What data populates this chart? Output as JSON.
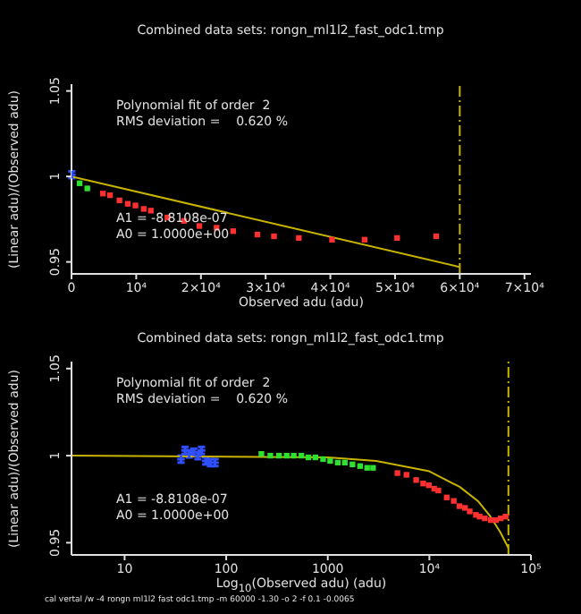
{
  "chart_data": [
    {
      "type": "scatter",
      "title": "Combined data sets: rongn_ml1l2_fast_odc1.tmp",
      "xlabel": "Observed adu (adu)",
      "ylabel": "(Linear adu)/(Observed adu)",
      "annotations": [
        "Polynomial fit of order  2",
        "RMS deviation =    0.620 %",
        "A1 = -8.8108e-07",
        "A0 = 1.0000e+00"
      ],
      "xlim": [
        0,
        71000
      ],
      "xticks": [
        0,
        {
          "value": 10000,
          "label": "10⁴"
        },
        {
          "value": 20000,
          "label": "2×10⁴"
        },
        {
          "value": 30000,
          "label": "3×10⁴"
        },
        {
          "value": 40000,
          "label": "4×10⁴"
        },
        {
          "value": 50000,
          "label": "5×10⁴"
        },
        {
          "value": 60000,
          "label": "6×10⁴"
        },
        {
          "value": 70000,
          "label": "7×10⁴"
        }
      ],
      "ylim": [
        0.943,
        1.054
      ],
      "yticks": [
        0.95,
        1,
        1.05
      ],
      "marker": "square",
      "series": [
        {
          "type": "line",
          "marker": "none",
          "line_style": "dashed",
          "color": "#c8b400",
          "x": [
            60000,
            60000
          ],
          "values": [
            0.943,
            1.054
          ]
        },
        {
          "color": "#3050ff",
          "marker": "cross",
          "x": [
            50
          ],
          "values": [
            1.001
          ],
          "errors": [
            0.002
          ]
        },
        {
          "color": "#30e030",
          "x": [
            1253,
            2440
          ],
          "values": [
            0.996,
            0.993
          ]
        },
        {
          "color": "#ff3030",
          "x": [
            4850,
            5950,
            7410,
            8690,
            9880,
            11160,
            12260,
            14820,
            17380,
            19760,
            22420,
            24980,
            28730,
            31290,
            35130,
            40260,
            45290,
            50320,
            56360
          ],
          "values": [
            0.99,
            0.989,
            0.986,
            0.984,
            0.983,
            0.981,
            0.98,
            0.976,
            0.974,
            0.971,
            0.97,
            0.968,
            0.966,
            0.965,
            0.964,
            0.963,
            0.963,
            0.964,
            0.965
          ]
        },
        {
          "type": "line",
          "marker": "none",
          "color": "#c8b400",
          "x": [
            0,
            60000
          ],
          "values": [
            1.0,
            0.947
          ]
        }
      ]
    },
    {
      "type": "scatter",
      "title": "Combined data sets: rongn_ml1l2_fast_odc1.tmp",
      "xlabel": "Log$_{10}$(Observed adu) (adu)",
      "ylabel": "(Linear adu)/(Observed adu)",
      "annotations": [
        "Polynomial fit of order  2",
        "RMS deviation =    0.620 %",
        "A1 = -8.8108e-07",
        "A0 = 1.0000e+00",
        "cal vertal /w -4 rongn ml1l2 fast odc1.tmp -m 60000 -1.30 -o 2 -f 0.1 -0.0065"
      ],
      "log": "x",
      "xlim": [
        3,
        100000
      ],
      "xticks": [
        10,
        100,
        1000,
        {
          "value": 10000,
          "label": "10⁴"
        },
        {
          "value": 100000,
          "label": "10⁵"
        }
      ],
      "ylim": [
        0.943,
        1.054
      ],
      "yticks": [
        0.95,
        1,
        1.05
      ],
      "marker": "square",
      "series": [
        {
          "type": "line",
          "marker": "none",
          "line_style": "dashed",
          "color": "#c8b400",
          "x": [
            60000,
            60000
          ],
          "values": [
            0.943,
            1.054
          ]
        },
        {
          "color": "#3050ff",
          "marker": "cross",
          "x": [
            35.9,
            39.4,
            43.2,
            48.0,
            52.6,
            57.1,
            62.8,
            69.9,
            77.7
          ],
          "values": [
            0.998,
            1.003,
            1.001,
            1.002,
            1.0,
            1.003,
            0.997,
            0.996,
            0.996
          ],
          "errors": [
            0.002,
            0.002,
            0.002,
            0.002,
            0.002,
            0.002,
            0.002,
            0.002,
            0.002
          ]
        },
        {
          "color": "#30e030",
          "x": [
            222,
            272,
            331,
            394,
            462,
            550,
            644,
            756,
            899,
            1055,
            1253,
            1471,
            1750,
            2080,
            2440,
            2790
          ],
          "values": [
            1.001,
            1.0,
            1.0,
            1.0,
            1.0,
            1.0,
            0.999,
            0.999,
            0.998,
            0.997,
            0.996,
            0.996,
            0.995,
            0.994,
            0.993,
            0.993
          ]
        },
        {
          "color": "#ff3030",
          "x": [
            4850,
            5950,
            7410,
            8690,
            9880,
            11160,
            12260,
            14820,
            17380,
            19760,
            22420,
            24980,
            28730,
            31290,
            35130,
            40260,
            45290,
            50320,
            56360
          ],
          "values": [
            0.99,
            0.989,
            0.986,
            0.984,
            0.983,
            0.981,
            0.98,
            0.976,
            0.974,
            0.971,
            0.97,
            0.968,
            0.966,
            0.965,
            0.964,
            0.963,
            0.963,
            0.964,
            0.965
          ]
        },
        {
          "type": "line",
          "marker": "none",
          "color": "#c8b400",
          "x": [
            3,
            1000,
            3000,
            10000,
            20000,
            30000,
            40000,
            50000,
            60000
          ],
          "values": [
            1.0,
            0.999,
            0.997,
            0.991,
            0.982,
            0.974,
            0.965,
            0.956,
            0.947
          ]
        }
      ]
    }
  ]
}
